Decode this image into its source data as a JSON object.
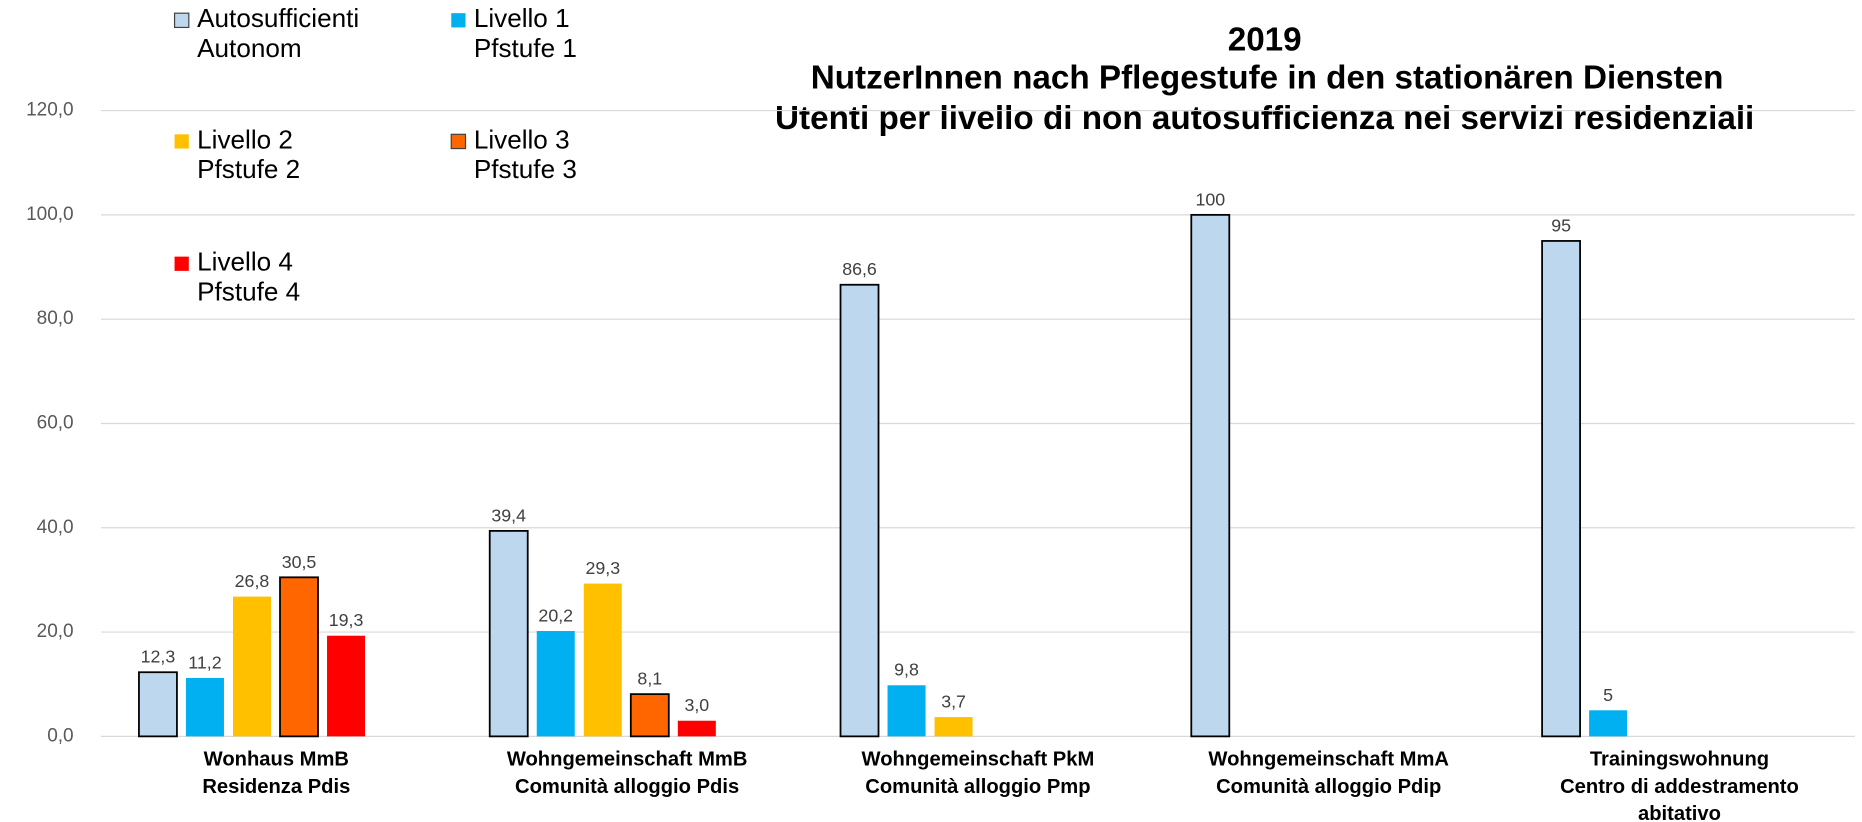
{
  "chart_data": {
    "type": "bar",
    "title": [
      "2019",
      "NutzerInnen nach Pflegestufe in den stationären Diensten",
      "Utenti per livello di non autosufficienza nei servizi residenziali"
    ],
    "categories": [
      [
        "Wonhaus MmB",
        "Residenza Pdis"
      ],
      [
        "Wohngemeinschaft MmB",
        "Comunità alloggio Pdis"
      ],
      [
        "Wohngemeinschaft PkM",
        "Comunità alloggio Pmp"
      ],
      [
        "Wohngemeinschaft MmA",
        "Comunità alloggio Pdip"
      ],
      [
        "Trainingswohnung",
        "Centro di addestramento",
        "abitativo"
      ]
    ],
    "series": [
      {
        "name": [
          "Autosufficienti",
          "Autonom"
        ],
        "color": "#bdd7ee",
        "edgecolor": "#000000",
        "values": [
          12.3,
          39.4,
          86.6,
          100,
          95
        ],
        "value_labels": [
          "12,3",
          "39,4",
          "86,6",
          "100",
          "95"
        ]
      },
      {
        "name": [
          "Livello 1",
          "Pfstufe 1"
        ],
        "color": "#00b0f0",
        "values": [
          11.2,
          20.2,
          9.8,
          null,
          5
        ],
        "value_labels": [
          "11,2",
          "20,2",
          "9,8",
          null,
          "5"
        ]
      },
      {
        "name": [
          "Livello 2",
          "Pfstufe 2"
        ],
        "color": "#ffc000",
        "values": [
          26.8,
          29.3,
          3.7,
          null,
          null
        ],
        "value_labels": [
          "26,8",
          "29,3",
          "3,7",
          null,
          null
        ]
      },
      {
        "name": [
          "Livello 3",
          "Pfstufe 3"
        ],
        "color": "#ff6600",
        "edgecolor": "#000000",
        "values": [
          30.5,
          8.1,
          null,
          null,
          null
        ],
        "value_labels": [
          "30,5",
          "8,1",
          null,
          null,
          null
        ]
      },
      {
        "name": [
          "Livello 4",
          "Pfstufe 4"
        ],
        "color": "#ff0000",
        "values": [
          19.3,
          3.0,
          null,
          null,
          null
        ],
        "value_labels": [
          "19,3",
          "3,0",
          null,
          null,
          null
        ]
      }
    ],
    "ylim": [
      0,
      120
    ],
    "yticks": [
      {
        "value": 0,
        "label": "0,0"
      },
      {
        "value": 20,
        "label": "20,0"
      },
      {
        "value": 40,
        "label": "40,0"
      },
      {
        "value": 60,
        "label": "60,0"
      },
      {
        "value": 80,
        "label": "80,0"
      },
      {
        "value": 100,
        "label": "100,0"
      },
      {
        "value": 120,
        "label": "120,0"
      }
    ],
    "grid": true
  }
}
